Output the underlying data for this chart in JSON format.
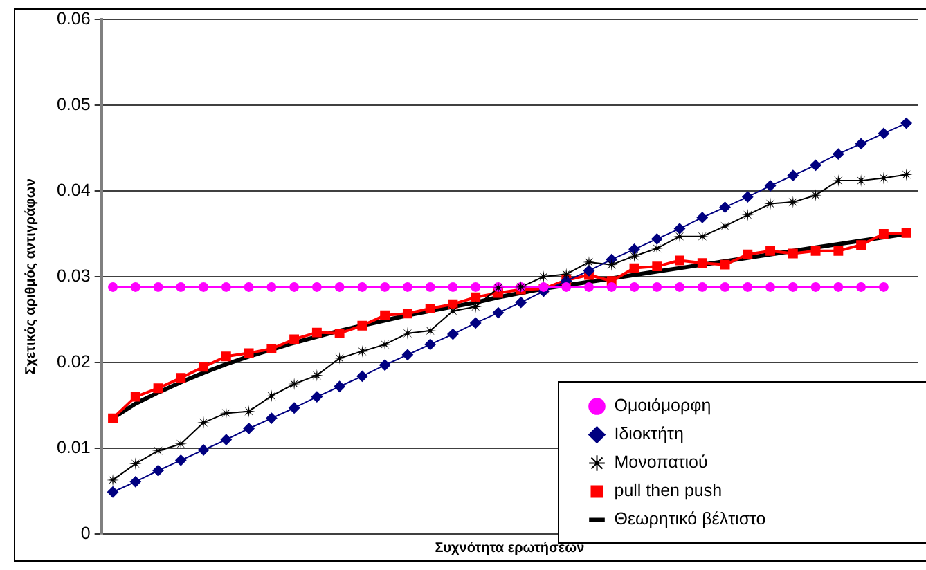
{
  "chart_data": {
    "type": "line",
    "xlabel": "Συχνότητα ερωτήσεων",
    "ylabel": "Σχετικός αριθμός αντιγράφων",
    "categories": [
      null,
      null,
      null,
      null,
      null,
      null,
      null,
      null,
      null,
      null,
      null,
      null,
      null,
      null,
      null,
      null,
      null,
      null,
      null,
      null,
      null,
      null,
      null,
      null,
      null,
      null,
      null,
      null,
      null,
      null,
      null,
      null,
      null,
      null,
      null,
      null
    ],
    "ylim": [
      0,
      0.06
    ],
    "yticks": [
      0,
      0.01,
      0.02,
      0.03,
      0.04,
      0.05,
      0.06
    ],
    "grid": "y",
    "legend": "bottom right",
    "tick_labels": "y",
    "series": [
      {
        "name": "Ομοιόμορφη",
        "color": "#ff00ff",
        "marker": "circle",
        "values": [
          0.0288,
          0.0288,
          0.0288,
          0.0288,
          0.0288,
          0.0288,
          0.0288,
          0.0288,
          0.0288,
          0.0288,
          0.0288,
          0.0288,
          0.0288,
          0.0288,
          0.0288,
          0.0288,
          0.0288,
          0.0288,
          0.0288,
          0.0288,
          0.0288,
          0.0288,
          0.0288,
          0.0288,
          0.0288,
          0.0288,
          0.0288,
          0.0288,
          0.0288,
          0.0288,
          0.0288,
          0.0288,
          0.0288,
          0.0288,
          0.0288,
          null
        ]
      },
      {
        "name": "Ιδιοκτήτη",
        "color": "#000080",
        "marker": "diamond",
        "values": [
          0.0049,
          0.0061,
          0.0074,
          0.0086,
          0.0098,
          0.011,
          0.0123,
          0.0135,
          0.0147,
          0.016,
          0.0172,
          0.0184,
          0.0197,
          0.0209,
          0.0221,
          0.0233,
          0.0246,
          0.0258,
          0.027,
          0.0283,
          0.0295,
          0.0307,
          0.032,
          0.0332,
          0.0344,
          0.0356,
          0.0369,
          0.0381,
          0.0393,
          0.0406,
          0.0418,
          0.043,
          0.0443,
          0.0455,
          0.0467,
          0.0479
        ]
      },
      {
        "name": "Μονοπατιού",
        "color": "#000000",
        "marker": "star",
        "values": [
          0.0063,
          0.0082,
          0.0097,
          0.0105,
          0.013,
          0.0141,
          0.0143,
          0.0161,
          0.0175,
          0.0185,
          0.0205,
          0.0213,
          0.0221,
          0.0234,
          0.0237,
          0.026,
          0.0265,
          0.0287,
          0.0288,
          0.03,
          0.0303,
          0.0317,
          0.0314,
          0.0324,
          0.0333,
          0.0347,
          0.0347,
          0.0359,
          0.0372,
          0.0385,
          0.0387,
          0.0395,
          0.0412,
          0.0412,
          0.0415,
          0.0419
        ]
      },
      {
        "name": "pull then push",
        "color": "#ff0000",
        "marker": "square",
        "values": [
          0.0135,
          0.016,
          0.017,
          0.0182,
          0.0195,
          0.0207,
          0.0211,
          0.0216,
          0.0227,
          0.0235,
          0.0234,
          0.0243,
          0.0255,
          0.0257,
          0.0263,
          0.0268,
          0.0276,
          0.0281,
          0.0285,
          0.0286,
          0.0296,
          0.0302,
          0.0295,
          0.031,
          0.0312,
          0.0319,
          0.0316,
          0.0314,
          0.0326,
          0.033,
          0.0327,
          0.033,
          0.033,
          0.0337,
          0.035,
          0.0351
        ]
      },
      {
        "name": "Θεωρητικό βέλτιστο",
        "color": "#000000",
        "marker": "none",
        "values": [
          0.0135,
          0.0152,
          0.0165,
          0.0177,
          0.0188,
          0.0198,
          0.0207,
          0.0215,
          0.0223,
          0.023,
          0.0237,
          0.0243,
          0.0249,
          0.0255,
          0.026,
          0.0265,
          0.027,
          0.0276,
          0.0281,
          0.0286,
          0.029,
          0.0294,
          0.0298,
          0.0302,
          0.0306,
          0.031,
          0.0314,
          0.0318,
          0.0322,
          0.0326,
          0.033,
          0.0334,
          0.0338,
          0.0342,
          0.0346,
          0.035
        ]
      }
    ]
  }
}
